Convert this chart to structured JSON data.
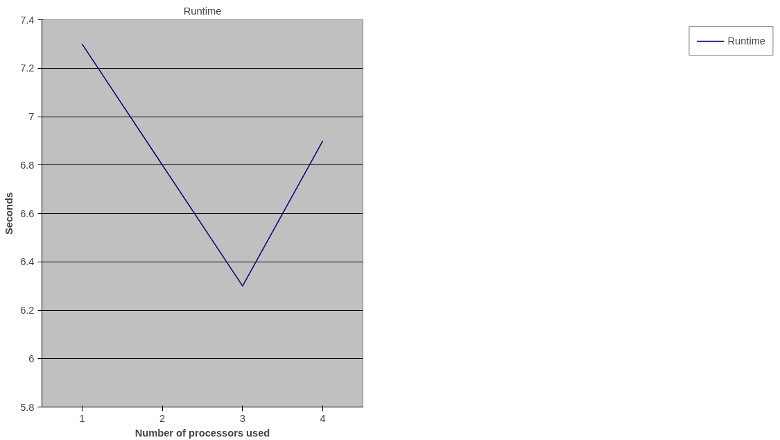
{
  "chart_data": {
    "type": "line",
    "title": "Runtime",
    "xlabel": "Number of processors used",
    "ylabel": "Seconds",
    "categories": [
      "1",
      "2",
      "3",
      "4"
    ],
    "series": [
      {
        "name": "Runtime",
        "color": "#000080",
        "values": [
          7.3,
          6.8,
          6.3,
          6.9
        ]
      }
    ],
    "ylim": [
      5.8,
      7.4
    ],
    "yticks": [
      5.8,
      6,
      6.2,
      6.4,
      6.6,
      6.8,
      7,
      7.2,
      7.4
    ],
    "grid": "y",
    "legend": "right",
    "marker": "none",
    "line_style": "solid"
  }
}
